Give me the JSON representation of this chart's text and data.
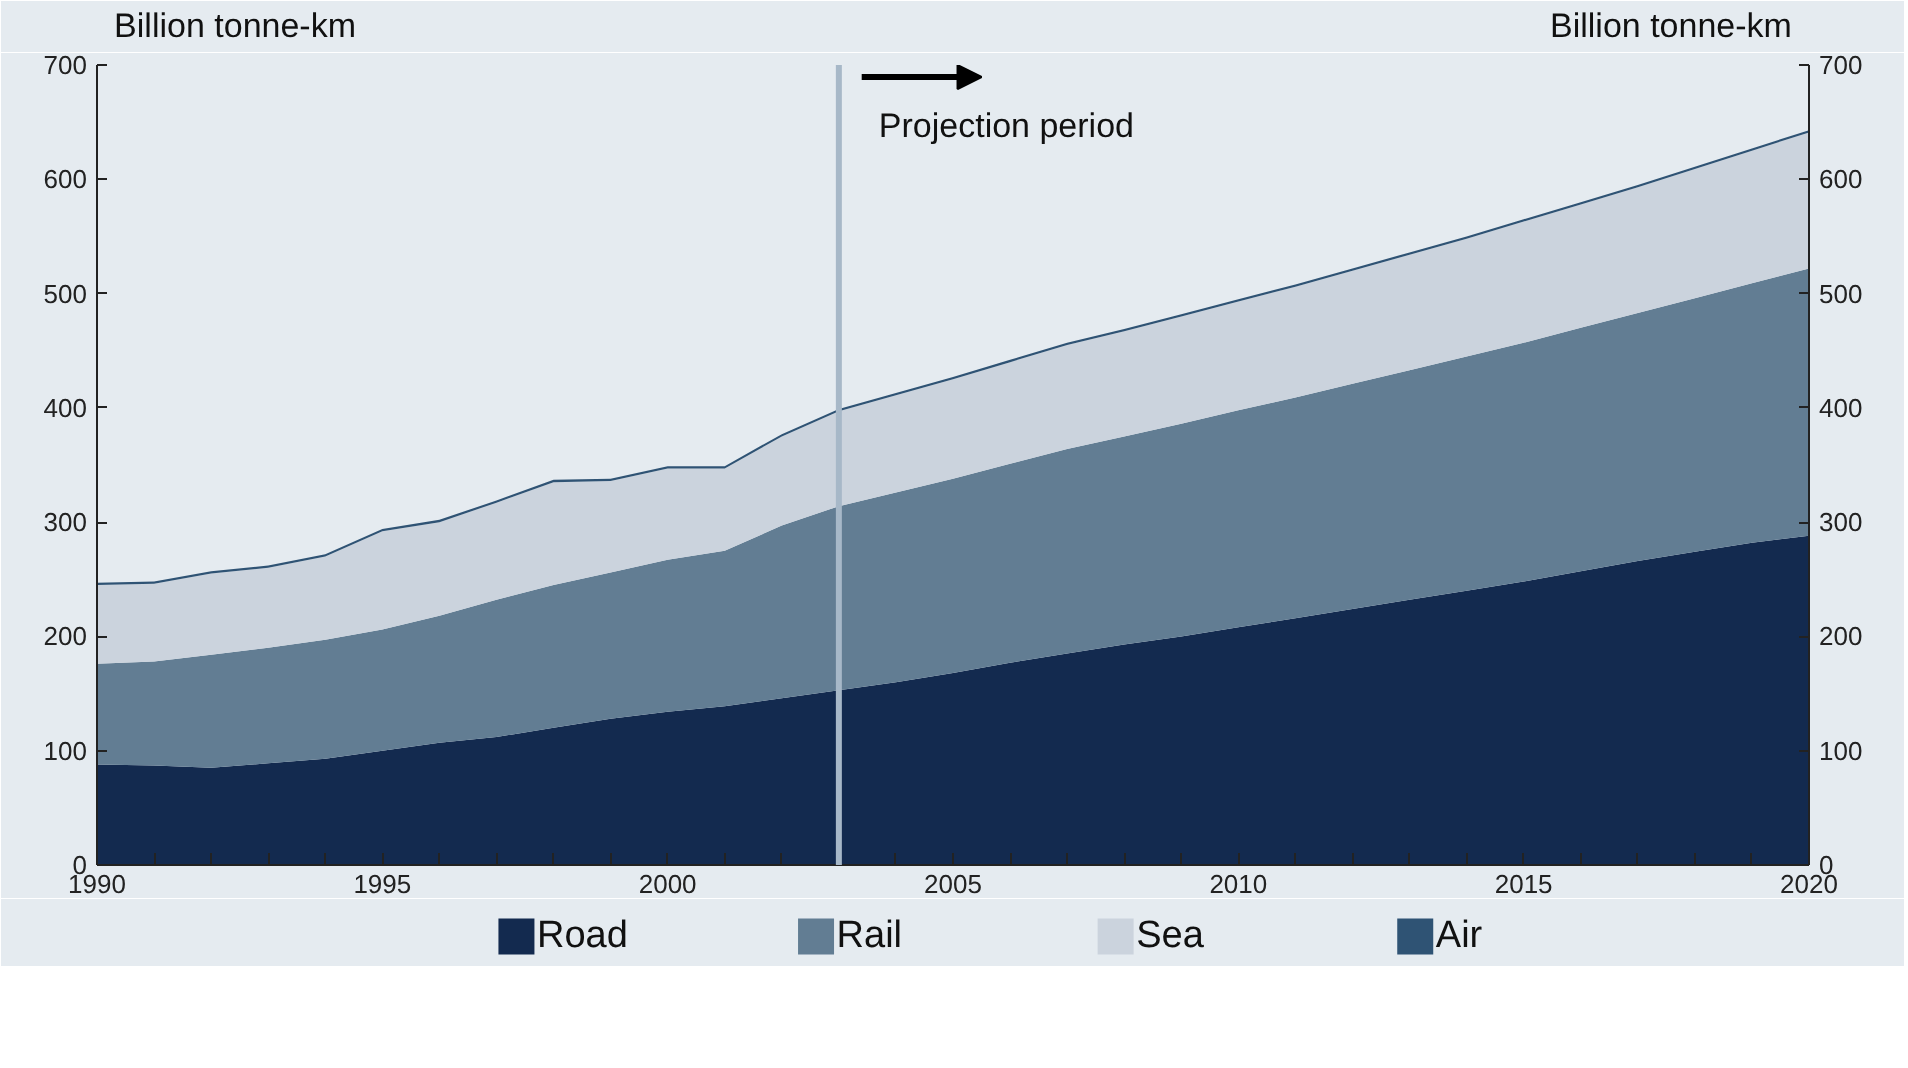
{
  "chart_data": {
    "type": "area",
    "stacked": true,
    "ylabel": "Billion tonne-km",
    "y2label": "Billion tonne-km",
    "x": [
      1990,
      1991,
      1992,
      1993,
      1994,
      1995,
      1996,
      1997,
      1998,
      1999,
      2000,
      2001,
      2002,
      2003,
      2004,
      2005,
      2006,
      2007,
      2008,
      2009,
      2010,
      2011,
      2012,
      2013,
      2014,
      2015,
      2016,
      2017,
      2018,
      2019,
      2020
    ],
    "series": [
      {
        "name": "Road",
        "color": "#132a4f",
        "values": [
          88,
          87,
          85,
          89,
          93,
          100,
          107,
          112,
          120,
          128,
          134,
          139,
          146,
          153,
          160,
          168,
          177,
          185,
          193,
          200,
          208,
          216,
          224,
          232,
          240,
          248,
          257,
          266,
          274,
          282,
          288
        ]
      },
      {
        "name": "Rail",
        "color": "#627d93",
        "values": [
          88,
          91,
          99,
          101,
          104,
          106,
          111,
          120,
          125,
          128,
          133,
          136,
          151,
          161,
          166,
          170,
          174,
          179,
          182,
          186,
          190,
          193,
          197,
          201,
          205,
          209,
          213,
          217,
          222,
          227,
          234
        ]
      },
      {
        "name": "Sea",
        "color": "#cbd3dd",
        "values": [
          69,
          68,
          71,
          70,
          73,
          86,
          82,
          85,
          90,
          80,
          80,
          72,
          78,
          83,
          85,
          87,
          89,
          91,
          92,
          94,
          95,
          97,
          99,
          101,
          103,
          106,
          108,
          110,
          113,
          116,
          119
        ]
      },
      {
        "name": "Air",
        "color": "#2f5374",
        "values": [
          2,
          2,
          2,
          2,
          2,
          2,
          2,
          2,
          2,
          2,
          2,
          2,
          2,
          2,
          2,
          2,
          2,
          2,
          2,
          2,
          2,
          2,
          2,
          2,
          2,
          2,
          2,
          2,
          2,
          2,
          2
        ]
      }
    ],
    "xlim": [
      1990,
      2020
    ],
    "xticks": [
      1990,
      1995,
      2000,
      2005,
      2010,
      2015,
      2020
    ],
    "ylim": [
      0,
      700
    ],
    "yticks": [
      0,
      100,
      200,
      300,
      400,
      500,
      600,
      700
    ],
    "y2lim": [
      0,
      700
    ],
    "y2ticks": [
      0,
      100,
      200,
      300,
      400,
      500,
      600,
      700
    ],
    "ref_lines": [
      {
        "axis": "x",
        "value": 2003,
        "label": "Projection period",
        "color": "#a7b8c8"
      }
    ],
    "grid": false,
    "legend": "bottom"
  }
}
